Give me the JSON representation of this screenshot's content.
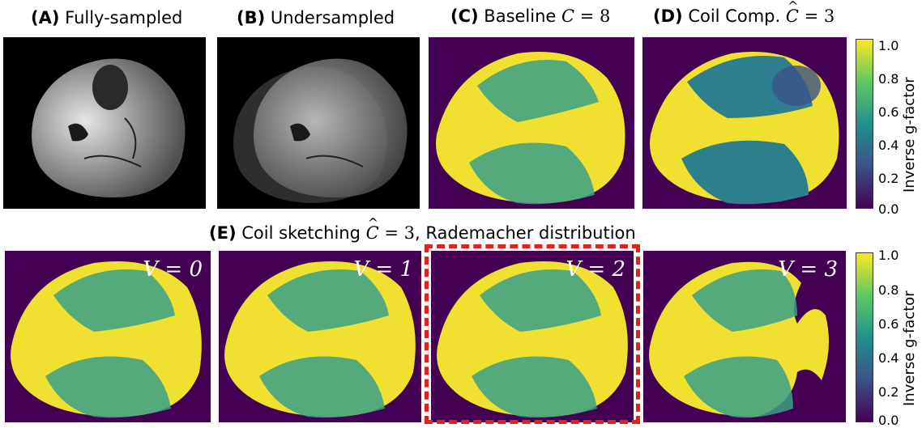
{
  "panels": {
    "a": {
      "tag": "(A)",
      "text": "Fully-sampled"
    },
    "b": {
      "tag": "(B)",
      "text": "Undersampled"
    },
    "c": {
      "tag": "(C)",
      "text": "Baseline",
      "math_var": "C",
      "math_val": " = 8"
    },
    "d": {
      "tag": "(D)",
      "text": "Coil Comp.",
      "math_var": "C",
      "math_val": " = 3"
    },
    "e": {
      "tag": "(E)",
      "text": "Coil sketching",
      "math_var": "C",
      "math_val": " = 3",
      "suffix": ", Rademacher distribution"
    }
  },
  "v_labels": [
    "V = 0",
    "V = 1",
    "V = 2",
    "V = 3"
  ],
  "colorbar": {
    "label": "Inverse g-factor",
    "ticks": [
      "1.0",
      "0.8",
      "0.6",
      "0.4",
      "0.2",
      "0.0"
    ]
  },
  "colors": {
    "low": "#440154",
    "high": "#fde725",
    "highlight": "#e0221b"
  }
}
